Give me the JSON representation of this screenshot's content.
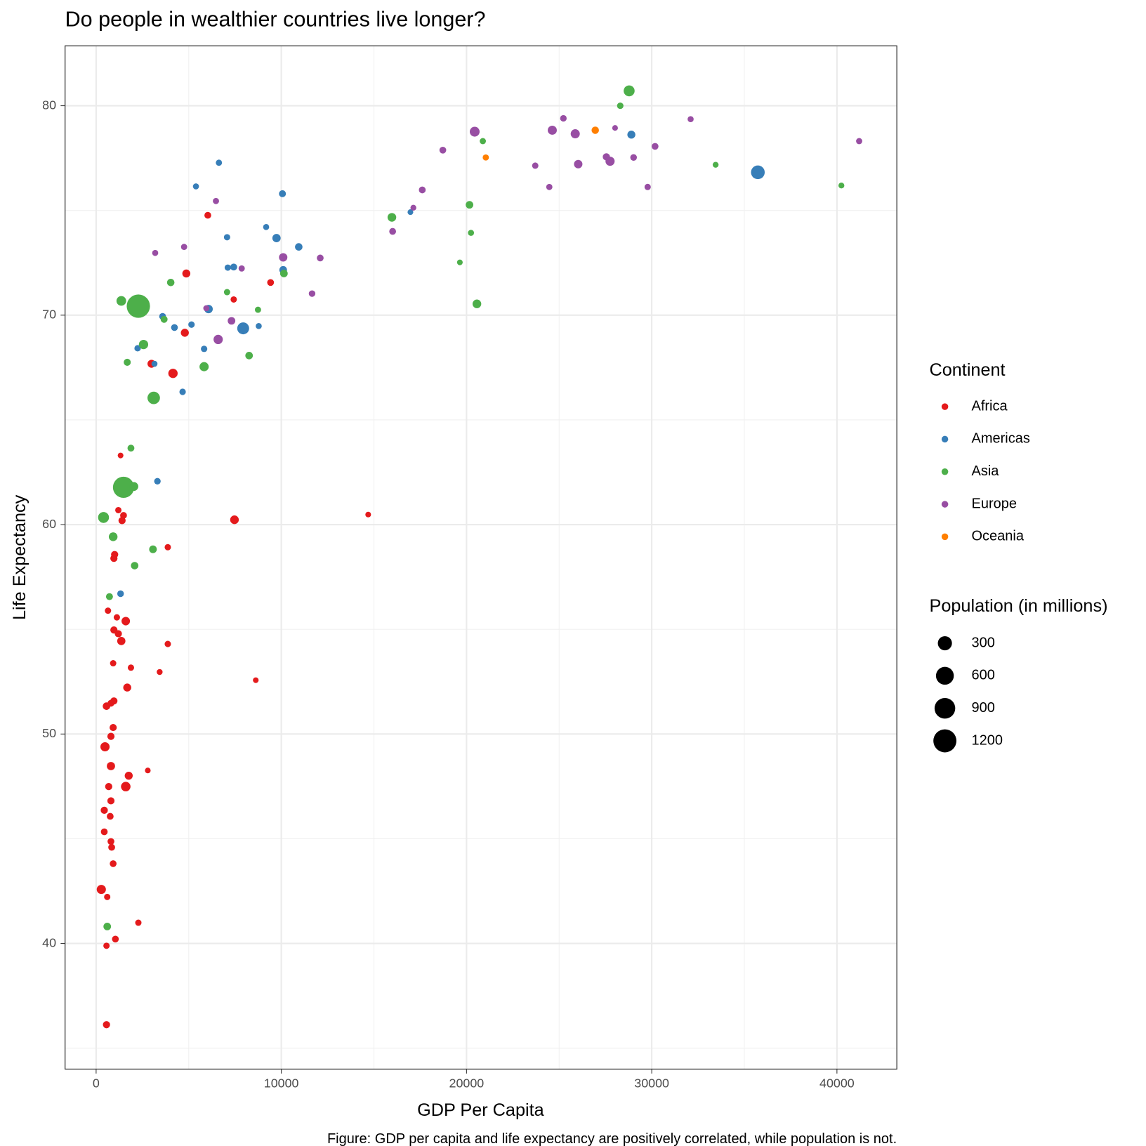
{
  "chart_data": {
    "type": "scatter",
    "title": "Do people in wealthier countries live longer?",
    "x_label": "GDP Per Capita",
    "y_label": "Life Expectancy",
    "caption": "Figure: GDP per capita and life expectancy are positively correlated, while population is not.",
    "xlim": [
      -1677,
      43234
    ],
    "ylim": [
      34.0,
      82.86
    ],
    "xticks": [
      0,
      10000,
      20000,
      30000,
      40000
    ],
    "yticks": [
      40,
      50,
      60,
      70,
      80
    ],
    "grid": true,
    "legend_position": "right",
    "legend_title": "Continent",
    "size_legend": {
      "title": "Population (in millions)",
      "values": [
        300,
        600,
        900,
        1200
      ]
    },
    "series": [
      {
        "name": "Africa",
        "color": "#e41a1c",
        "x": [
          6030,
          4870,
          7430,
          9420,
          4790,
          2990,
          4150,
          1320,
          1200,
          1480,
          1400,
          7470,
          14690,
          3870,
          1000,
          960,
          640,
          1120,
          1600,
          960,
          1200,
          1360,
          3870,
          920,
          1880,
          3430,
          8620,
          1680,
          960,
          800,
          560,
          920,
          800,
          480,
          800,
          1760,
          2790,
          1600,
          680,
          800,
          440,
          760,
          440,
          800,
          840,
          920,
          280,
          600,
          2280,
          1040,
          560,
          560
        ],
        "values": [
          74.77,
          71.99,
          70.75,
          71.56,
          69.16,
          67.68,
          67.22,
          63.3,
          60.69,
          60.44,
          60.19,
          60.23,
          60.48,
          58.92,
          58.57,
          58.39,
          55.89,
          55.57,
          55.39,
          54.97,
          54.79,
          54.44,
          54.3,
          53.38,
          53.17,
          52.96,
          52.57,
          52.22,
          51.58,
          51.47,
          51.33,
          50.31,
          49.89,
          49.39,
          48.47,
          48.01,
          48.26,
          47.49,
          47.49,
          46.81,
          46.36,
          46.07,
          45.33,
          44.87,
          44.59,
          43.81,
          42.58,
          42.22,
          40.99,
          40.21,
          39.89,
          36.12
        ],
        "sizes": [
          10,
          30,
          5,
          10,
          30,
          30,
          65,
          1,
          5,
          10,
          15,
          45,
          1,
          5,
          15,
          15,
          5,
          5,
          40,
          15,
          15,
          35,
          5,
          5,
          5,
          2,
          1,
          30,
          15,
          10,
          20,
          15,
          15,
          60,
          35,
          30,
          1,
          70,
          15,
          15,
          15,
          10,
          10,
          10,
          10,
          10,
          60,
          5,
          5,
          10,
          5,
          15
        ]
      },
      {
        "name": "Americas",
        "color": "#377eb8",
        "x": [
          6630,
          5390,
          10060,
          16970,
          9180,
          7070,
          9740,
          10940,
          10100,
          7110,
          7430,
          6070,
          3590,
          4230,
          5150,
          7940,
          8780,
          2240,
          5830,
          3150,
          4670,
          3310,
          1320,
          28900,
          35730
        ],
        "values": [
          77.28,
          76.15,
          75.8,
          74.92,
          74.21,
          73.72,
          73.68,
          73.26,
          72.16,
          72.27,
          72.3,
          70.29,
          69.94,
          69.41,
          69.55,
          69.37,
          69.48,
          68.42,
          68.39,
          67.68,
          66.34,
          62.07,
          56.7,
          78.62,
          76.82
        ],
        "sizes": [
          4,
          3,
          12,
          1,
          3,
          5,
          36,
          20,
          24,
          5,
          11,
          40,
          10,
          10,
          6,
          168,
          3,
          6,
          6,
          3,
          6,
          7,
          8,
          30,
          272
        ]
      },
      {
        "name": "Asia",
        "color": "#4daf4a",
        "x": [
          28780,
          28300,
          20880,
          33450,
          40240,
          15970,
          20160,
          20240,
          19640,
          20560,
          4030,
          7070,
          8740,
          10140,
          1360,
          2280,
          3670,
          2560,
          5830,
          8260,
          1680,
          3110,
          1880,
          1480,
          2040,
          400,
          920,
          3070,
          2080,
          720,
          600
        ],
        "values": [
          80.71,
          80.0,
          78.31,
          77.18,
          76.19,
          74.67,
          75.27,
          73.93,
          72.52,
          70.54,
          71.56,
          71.1,
          70.26,
          71.99,
          70.68,
          70.43,
          69.8,
          68.6,
          67.54,
          68.07,
          67.75,
          66.05,
          63.65,
          61.78,
          61.82,
          60.34,
          59.42,
          58.82,
          58.04,
          56.56,
          40.81
        ],
        "sizes": [
          125,
          6,
          4,
          2,
          2,
          46,
          22,
          3,
          1,
          46,
          19,
          5,
          4,
          22,
          76,
          1230,
          12,
          64,
          60,
          21,
          13,
          200,
          11,
          959,
          48,
          123,
          47,
          23,
          20,
          12,
          22
        ]
      },
      {
        "name": "Europe",
        "color": "#984ea3",
        "x": [
          25230,
          32100,
          24630,
          20440,
          25870,
          28020,
          41200,
          18720,
          30180,
          29020,
          27550,
          27750,
          26030,
          23710,
          24470,
          29780,
          17610,
          17130,
          16010,
          6470,
          4750,
          3190,
          12100,
          7860,
          10100,
          11660,
          7310,
          6590,
          5950
        ],
        "values": [
          79.4,
          79.36,
          78.83,
          78.76,
          78.66,
          78.94,
          78.31,
          77.88,
          78.06,
          77.53,
          77.56,
          77.35,
          77.21,
          77.14,
          76.12,
          76.12,
          75.98,
          75.13,
          74.0,
          75.45,
          73.26,
          72.97,
          72.73,
          72.23,
          72.76,
          71.03,
          69.73,
          68.84,
          70.33
        ],
        "sizes": [
          7,
          3,
          57,
          82,
          58,
          1,
          4,
          10,
          10,
          8,
          16,
          59,
          40,
          5,
          4,
          5,
          10,
          2,
          10,
          4,
          4,
          3,
          10,
          4,
          39,
          7,
          22,
          63,
          3
        ]
      },
      {
        "name": "Oceania",
        "color": "#ff7f00",
        "x": [
          26950,
          21040
        ],
        "values": [
          78.83,
          77.53
        ],
        "sizes": [
          18,
          4
        ]
      }
    ]
  }
}
